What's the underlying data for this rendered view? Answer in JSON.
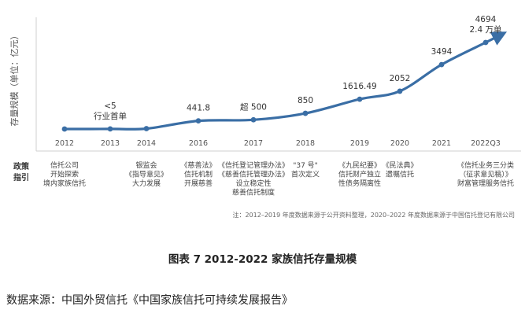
{
  "chart_data": {
    "type": "line",
    "ylabel": "存量规模（单位：亿元）",
    "categories": [
      "2012",
      "2013",
      "2014",
      "2016",
      "2017",
      "2018",
      "2019",
      "2020",
      "2021",
      "2022Q3"
    ],
    "values": [
      0,
      5,
      20,
      441.8,
      500,
      850,
      1616.49,
      2052,
      3494,
      4694
    ],
    "data_labels": [
      {
        "index": 1,
        "lines": [
          "<5",
          "行业首单"
        ]
      },
      {
        "index": 3,
        "lines": [
          "441.8"
        ]
      },
      {
        "index": 4,
        "lines": [
          "超 500"
        ]
      },
      {
        "index": 5,
        "lines": [
          "850"
        ]
      },
      {
        "index": 6,
        "lines": [
          "1616.49"
        ]
      },
      {
        "index": 7,
        "lines": [
          "2052"
        ]
      },
      {
        "index": 8,
        "lines": [
          "3494"
        ]
      },
      {
        "index": 9,
        "lines": [
          "4694",
          "2.4 万单"
        ]
      }
    ],
    "policy_title": [
      "政策",
      "指引"
    ],
    "policies": [
      {
        "index": 0,
        "lines": [
          "信托公司",
          "开始探索",
          "境内家族信托"
        ]
      },
      {
        "index": 2,
        "lines": [
          "银监会",
          "《指导意见》",
          "大力发展"
        ]
      },
      {
        "index": 3,
        "lines": [
          "《慈善法》",
          "信托机制",
          "开展慈善"
        ]
      },
      {
        "index": 4,
        "lines": [
          "《信托登记管理办法》",
          "《慈善信托管理办法》",
          "设立稳定性",
          "慈善信托制度"
        ]
      },
      {
        "index": 5,
        "lines": [
          "\"37 号\"",
          "首次定义"
        ]
      },
      {
        "index": 6,
        "lines": [
          "《九民纪要》",
          "信托财产独立",
          "性债务隔离性"
        ]
      },
      {
        "index": 7,
        "lines": [
          "《民法典》",
          "遗嘱信托"
        ]
      },
      {
        "index": 9,
        "lines": [
          "《信托业务三分类",
          "（征求意见稿）》",
          "财富管理服务信托"
        ]
      }
    ],
    "note": "注：2012–2019 年度数据来源于公开资料整理，2020–2022 年度数据来源于中国信托登记有限公司",
    "line_color": "#3a6ea5"
  },
  "caption": "图表 7 2012-2022 家族信托存量规模",
  "source": "数据来源：中国外贸信托《中国家族信托可持续发展报告》"
}
